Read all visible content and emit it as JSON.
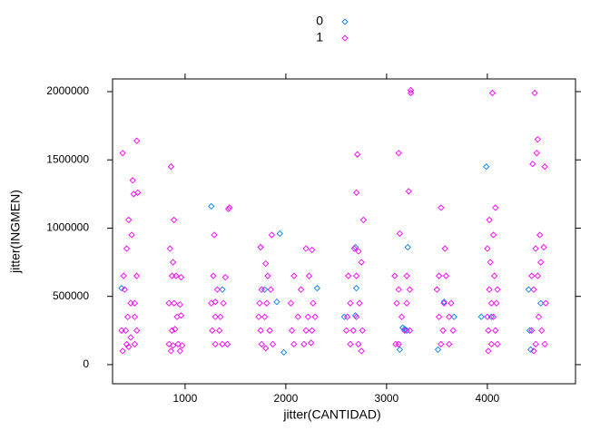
{
  "chart_data": {
    "type": "scatter",
    "x_label": "jitter(CANTIDAD)",
    "y_label": "jitter(INGMEN)",
    "xlim": [
      280,
      4875
    ],
    "ylim": [
      -140000,
      2093000
    ],
    "xticks": [
      1000,
      2000,
      3000,
      4000
    ],
    "yticks": [
      0,
      500000,
      1000000,
      1500000,
      2000000
    ],
    "legend": "top",
    "series": [
      {
        "name": "0",
        "color": "#0080ff",
        "x": [
          370,
          1260,
          1370,
          1940,
          1910,
          1750,
          1790,
          1980,
          2310,
          2580,
          2690,
          2700,
          2690,
          3210,
          3160,
          3130,
          3570,
          3510,
          3670,
          3990,
          3940,
          4040,
          4530,
          4410,
          4430,
          4420,
          3180,
          3200
        ],
        "values": [
          560000,
          1160000,
          550000,
          960000,
          460000,
          860000,
          550000,
          90000,
          560000,
          350000,
          360000,
          560000,
          860000,
          860000,
          270000,
          110000,
          460000,
          110000,
          350000,
          1450000,
          350000,
          350000,
          450000,
          550000,
          110000,
          250000,
          260000,
          250000
        ]
      },
      {
        "name": "1",
        "color": "#ff00ff",
        "x": [
          390,
          380,
          520,
          480,
          490,
          530,
          440,
          420,
          470,
          520,
          400,
          460,
          430,
          500,
          500,
          520,
          370,
          420,
          500,
          380,
          410,
          460,
          440,
          860,
          890,
          850,
          880,
          870,
          910,
          960,
          840,
          890,
          950,
          920,
          960,
          870,
          900,
          840,
          880,
          930,
          970,
          860,
          950,
          1290,
          1280,
          1320,
          1260,
          1300,
          1350,
          1270,
          1340,
          1300,
          1370,
          1420,
          1440,
          1430,
          1380,
          1400,
          1300,
          1750,
          1800,
          1820,
          1760,
          1850,
          1740,
          1810,
          1730,
          1790,
          1750,
          1840,
          1860,
          1760,
          1870,
          1800,
          2080,
          2200,
          2260,
          2230,
          2150,
          2270,
          2120,
          2220,
          2060,
          2200,
          2260,
          2080,
          2180,
          2250,
          2290,
          2050,
          2710,
          2700,
          2770,
          2680,
          2720,
          2750,
          2620,
          2700,
          2640,
          2730,
          2610,
          2700,
          2600,
          2670,
          2760,
          2640,
          2720,
          2750,
          3120,
          3220,
          3240,
          3240,
          3130,
          3080,
          3200,
          3120,
          3230,
          3100,
          3200,
          3150,
          3090,
          3180,
          3230,
          3120,
          3540,
          3580,
          3520,
          3590,
          3500,
          3570,
          3640,
          3520,
          3620,
          3560,
          3660,
          3540,
          3620,
          4050,
          4080,
          4020,
          4060,
          4000,
          4030,
          4070,
          4020,
          4100,
          4040,
          4090,
          4000,
          4060,
          4010,
          4080,
          4040,
          4100,
          4010,
          4470,
          4500,
          4450,
          4570,
          4490,
          4520,
          4560,
          4480,
          4530,
          4440,
          4500,
          4460,
          4580,
          4510,
          4440,
          4540,
          4480,
          4570,
          4460
        ],
        "values": [
          650000,
          1550000,
          1640000,
          1350000,
          1250000,
          1260000,
          1060000,
          850000,
          950000,
          650000,
          550000,
          450000,
          350000,
          350000,
          450000,
          250000,
          250000,
          150000,
          150000,
          100000,
          250000,
          200000,
          130000,
          1450000,
          1060000,
          850000,
          750000,
          650000,
          650000,
          640000,
          450000,
          450000,
          440000,
          350000,
          360000,
          250000,
          260000,
          150000,
          140000,
          150000,
          140000,
          100000,
          100000,
          950000,
          650000,
          550000,
          450000,
          350000,
          350000,
          250000,
          250000,
          150000,
          150000,
          150000,
          1150000,
          1140000,
          450000,
          640000,
          460000,
          860000,
          740000,
          650000,
          550000,
          550000,
          450000,
          450000,
          350000,
          350000,
          250000,
          250000,
          950000,
          150000,
          150000,
          120000,
          650000,
          850000,
          840000,
          650000,
          550000,
          450000,
          350000,
          350000,
          250000,
          250000,
          250000,
          150000,
          150000,
          160000,
          350000,
          450000,
          1540000,
          1260000,
          1060000,
          850000,
          830000,
          750000,
          650000,
          650000,
          450000,
          450000,
          350000,
          350000,
          250000,
          250000,
          250000,
          150000,
          150000,
          100000,
          1550000,
          1270000,
          2010000,
          1990000,
          960000,
          650000,
          650000,
          550000,
          550000,
          450000,
          450000,
          350000,
          150000,
          250000,
          250000,
          150000,
          1150000,
          850000,
          650000,
          650000,
          550000,
          450000,
          450000,
          350000,
          350000,
          250000,
          250000,
          150000,
          150000,
          1990000,
          1150000,
          1060000,
          950000,
          850000,
          750000,
          650000,
          550000,
          550000,
          450000,
          450000,
          350000,
          350000,
          250000,
          250000,
          150000,
          150000,
          100000,
          1990000,
          1650000,
          1470000,
          1450000,
          1550000,
          950000,
          860000,
          850000,
          750000,
          650000,
          650000,
          550000,
          450000,
          350000,
          250000,
          250000,
          150000,
          150000,
          100000
        ]
      }
    ]
  }
}
